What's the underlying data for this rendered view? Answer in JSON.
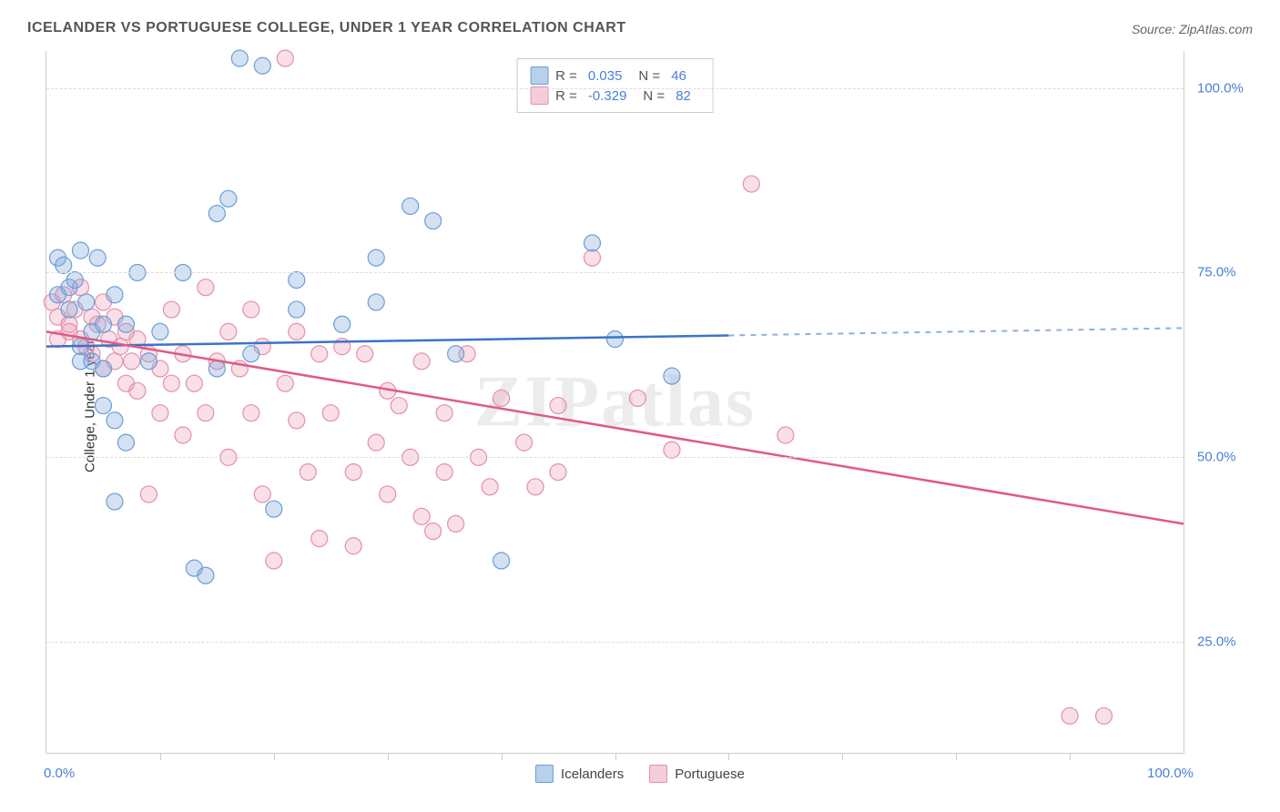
{
  "title": "ICELANDER VS PORTUGUESE COLLEGE, UNDER 1 YEAR CORRELATION CHART",
  "source": "Source: ZipAtlas.com",
  "ylabel": "College, Under 1 year",
  "watermark": "ZIPatlas",
  "colors": {
    "series1_fill": "rgba(130,170,220,0.35)",
    "series1_stroke": "#6a9ed6",
    "series1_swatch_fill": "#b8d0ec",
    "series1_swatch_border": "#6a9ed6",
    "series2_fill": "rgba(235,150,175,0.30)",
    "series2_stroke": "#e58fa8",
    "series2_swatch_fill": "#f5cdd8",
    "series2_swatch_border": "#e58fa8",
    "line1": "#3b73c9",
    "line1_dash": "#8fb0db",
    "line2": "#e05a84",
    "axis_label": "#4a7fd6",
    "grid": "#dddddd",
    "text": "#555555"
  },
  "xlim": [
    0,
    100
  ],
  "ylim": [
    10,
    105
  ],
  "ygrid": [
    25,
    50,
    75,
    100
  ],
  "ygrid_labels": [
    "25.0%",
    "50.0%",
    "75.0%",
    "100.0%"
  ],
  "xaxis_label_left": "0.0%",
  "xaxis_label_right": "100.0%",
  "xticks": [
    10,
    20,
    30,
    40,
    50,
    60,
    70,
    80,
    90
  ],
  "stats": [
    {
      "series": 1,
      "r_label": "R =",
      "r_value": "0.035",
      "n_label": "N =",
      "n_value": "46"
    },
    {
      "series": 2,
      "r_label": "R =",
      "r_value": "-0.329",
      "n_label": "N =",
      "n_value": "82"
    }
  ],
  "legend": [
    {
      "series": 1,
      "label": "Icelanders"
    },
    {
      "series": 2,
      "label": "Portuguese"
    }
  ],
  "trend_lines": {
    "series1": {
      "x1": 0,
      "y1": 65,
      "x2": 60,
      "y2": 66.5,
      "x2_dash": 100,
      "y2_dash": 67.5
    },
    "series2": {
      "x1": 0,
      "y1": 67,
      "x2": 100,
      "y2": 41
    }
  },
  "marker_radius": 9,
  "series1_points": [
    [
      1,
      77
    ],
    [
      1,
      72
    ],
    [
      1.5,
      76
    ],
    [
      2,
      73
    ],
    [
      2,
      70
    ],
    [
      2.5,
      74
    ],
    [
      3,
      78
    ],
    [
      3,
      65
    ],
    [
      3,
      63
    ],
    [
      3.5,
      71
    ],
    [
      4,
      67
    ],
    [
      4,
      63
    ],
    [
      4.5,
      77
    ],
    [
      5,
      68
    ],
    [
      5,
      62
    ],
    [
      5,
      57
    ],
    [
      6,
      72
    ],
    [
      6,
      55
    ],
    [
      6,
      44
    ],
    [
      7,
      68
    ],
    [
      7,
      52
    ],
    [
      8,
      75
    ],
    [
      9,
      63
    ],
    [
      10,
      67
    ],
    [
      12,
      75
    ],
    [
      13,
      35
    ],
    [
      14,
      34
    ],
    [
      15,
      62
    ],
    [
      15,
      83
    ],
    [
      16,
      85
    ],
    [
      17,
      104
    ],
    [
      18,
      64
    ],
    [
      19,
      103
    ],
    [
      20,
      43
    ],
    [
      22,
      74
    ],
    [
      22,
      70
    ],
    [
      26,
      68
    ],
    [
      29,
      77
    ],
    [
      29,
      71
    ],
    [
      32,
      84
    ],
    [
      34,
      82
    ],
    [
      36,
      64
    ],
    [
      40,
      36
    ],
    [
      48,
      79
    ],
    [
      50,
      66
    ],
    [
      55,
      61
    ]
  ],
  "series2_points": [
    [
      0.5,
      71
    ],
    [
      1,
      69
    ],
    [
      1,
      66
    ],
    [
      1.5,
      72
    ],
    [
      2,
      68
    ],
    [
      2,
      67
    ],
    [
      2.5,
      70
    ],
    [
      3,
      73
    ],
    [
      3,
      66
    ],
    [
      3.5,
      65
    ],
    [
      4,
      69
    ],
    [
      4,
      64
    ],
    [
      4.5,
      68
    ],
    [
      5,
      71
    ],
    [
      5,
      62
    ],
    [
      5.5,
      66
    ],
    [
      6,
      69
    ],
    [
      6,
      63
    ],
    [
      6.5,
      65
    ],
    [
      7,
      67
    ],
    [
      7,
      60
    ],
    [
      7.5,
      63
    ],
    [
      8,
      66
    ],
    [
      8,
      59
    ],
    [
      9,
      64
    ],
    [
      9,
      45
    ],
    [
      10,
      62
    ],
    [
      10,
      56
    ],
    [
      11,
      70
    ],
    [
      11,
      60
    ],
    [
      12,
      64
    ],
    [
      12,
      53
    ],
    [
      13,
      60
    ],
    [
      14,
      73
    ],
    [
      14,
      56
    ],
    [
      15,
      63
    ],
    [
      16,
      67
    ],
    [
      16,
      50
    ],
    [
      17,
      62
    ],
    [
      18,
      70
    ],
    [
      18,
      56
    ],
    [
      19,
      65
    ],
    [
      19,
      45
    ],
    [
      20,
      36
    ],
    [
      21,
      60
    ],
    [
      21,
      104
    ],
    [
      22,
      67
    ],
    [
      22,
      55
    ],
    [
      23,
      48
    ],
    [
      24,
      64
    ],
    [
      24,
      39
    ],
    [
      25,
      56
    ],
    [
      26,
      65
    ],
    [
      27,
      48
    ],
    [
      27,
      38
    ],
    [
      28,
      64
    ],
    [
      29,
      52
    ],
    [
      30,
      59
    ],
    [
      30,
      45
    ],
    [
      31,
      57
    ],
    [
      32,
      50
    ],
    [
      33,
      63
    ],
    [
      33,
      42
    ],
    [
      34,
      40
    ],
    [
      35,
      56
    ],
    [
      35,
      48
    ],
    [
      36,
      41
    ],
    [
      37,
      64
    ],
    [
      38,
      50
    ],
    [
      39,
      46
    ],
    [
      40,
      58
    ],
    [
      42,
      52
    ],
    [
      43,
      46
    ],
    [
      45,
      57
    ],
    [
      45,
      48
    ],
    [
      48,
      77
    ],
    [
      52,
      58
    ],
    [
      55,
      51
    ],
    [
      62,
      87
    ],
    [
      65,
      53
    ],
    [
      90,
      15
    ],
    [
      93,
      15
    ]
  ]
}
